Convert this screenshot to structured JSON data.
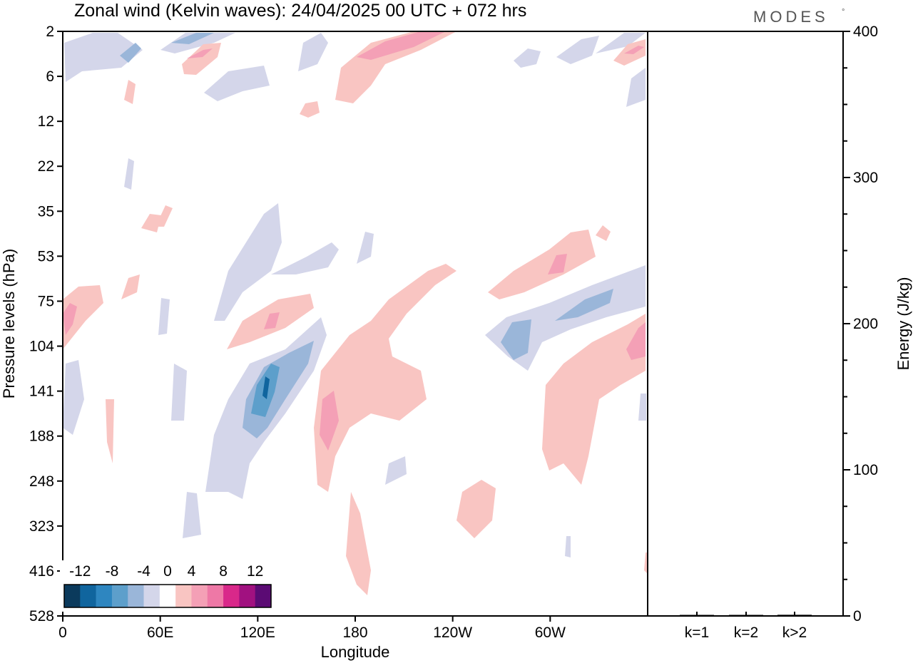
{
  "title": "Zonal wind (Kelvin waves):  24/04/2025  00 UTC  + 072 hrs",
  "logo": {
    "text": "MODES",
    "mark": "°"
  },
  "chart_data": [
    {
      "type": "heatmap",
      "title": "Zonal wind (Kelvin waves):  24/04/2025  00 UTC  + 072 hrs",
      "xlabel": "Longitude",
      "ylabel": "Pressure levels (hPa)",
      "x_tick_labels": [
        "0",
        "60E",
        "120E",
        "180",
        "120W",
        "60W"
      ],
      "x_ticks_deg": [
        0,
        60,
        120,
        180,
        240,
        300
      ],
      "xlim_deg": [
        0,
        360
      ],
      "y_tick_labels": [
        "2",
        "6",
        "12",
        "22",
        "35",
        "53",
        "75",
        "104",
        "141",
        "188",
        "248",
        "323",
        "416",
        "528"
      ],
      "y_scale": "level index (non-uniform pressure, top = 2 hPa)",
      "grid": false,
      "colorbar": {
        "tick_labels": [
          "-12",
          "-8",
          "-4",
          "0",
          "4",
          "8",
          "12"
        ],
        "levels": [
          -14,
          -12,
          -10,
          -8,
          -6,
          -4,
          -2,
          2,
          4,
          6,
          8,
          10,
          12,
          14
        ],
        "colors": [
          "#0b3a5c",
          "#10659e",
          "#2e86c0",
          "#5d9fcb",
          "#9ab6d9",
          "#d4d6ea",
          "#ffffff",
          "#f9c5c2",
          "#f4a0b6",
          "#ee78a6",
          "#d9288a",
          "#a11180",
          "#5b0b74"
        ],
        "placement": "bottom-left"
      },
      "features": [
        {
          "region": "upper stratosphere 2-6 hPa",
          "lon_range": "100E-210E",
          "sign": "positive",
          "peak": 6
        },
        {
          "region": "upper troposphere 104-188 hPa",
          "lon_range": "95E-130E",
          "sign": "negative",
          "peak": -12
        },
        {
          "region": "upper troposphere 141-188 hPa",
          "lon_range": "150E-175E",
          "sign": "positive",
          "peak": 6
        },
        {
          "region": "75-141 hPa",
          "lon_range": "270W-300W",
          "sign": "negative",
          "peak": -6
        },
        {
          "region": "53-75 hPa",
          "lon_range": "270W-300W",
          "sign": "positive",
          "peak": 6
        },
        {
          "region": "75-141 hPa",
          "lon_range": "300W-360",
          "sign": "positive",
          "peak": 6
        }
      ]
    },
    {
      "type": "bar",
      "categories": [
        "k=1",
        "k=2",
        "k>2"
      ],
      "values": [
        0.5,
        0.5,
        0.8
      ],
      "ylabel": "Energy (J/kg)",
      "ylim": [
        0,
        400
      ],
      "y_tick_labels": [
        "0",
        "100",
        "200",
        "300",
        "400"
      ],
      "grid": false
    }
  ]
}
